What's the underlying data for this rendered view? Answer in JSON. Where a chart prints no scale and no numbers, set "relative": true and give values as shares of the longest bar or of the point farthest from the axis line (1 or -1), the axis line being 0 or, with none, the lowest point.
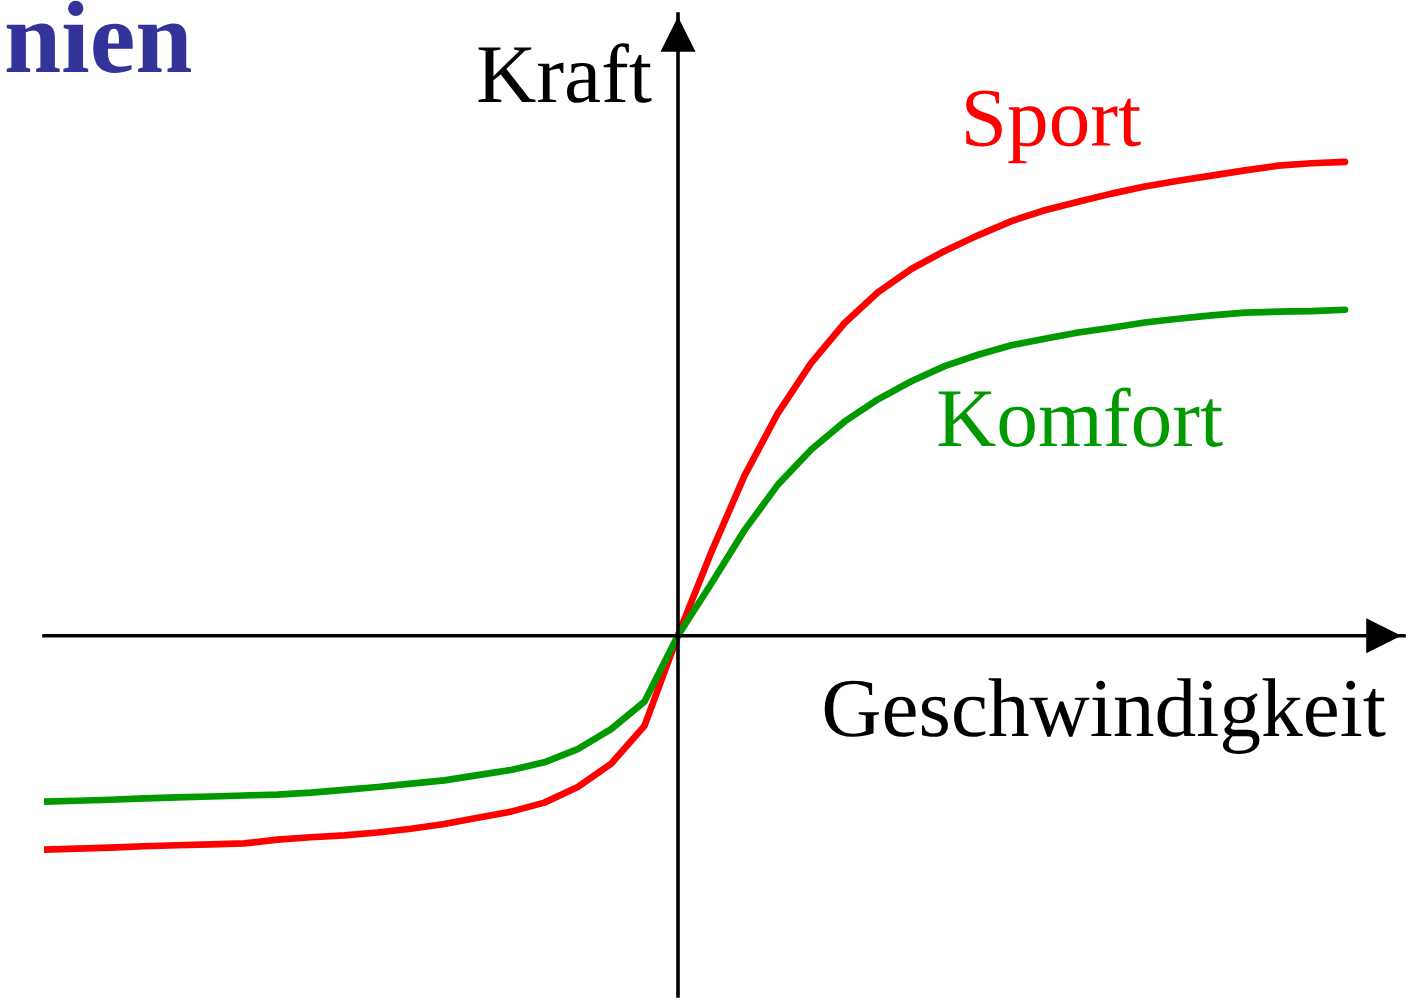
{
  "chart_data": {
    "type": "line",
    "title": "nien",
    "xlabel": "Geschwindigkeit",
    "ylabel": "Kraft",
    "relative": true,
    "categories": [
      null,
      null,
      null,
      null,
      null,
      null,
      null,
      null,
      null,
      null,
      null,
      null,
      null,
      null,
      null,
      null,
      null,
      null,
      null,
      null,
      null,
      null,
      null,
      null,
      null,
      null,
      null,
      null,
      null,
      null,
      null,
      null,
      null,
      null,
      null,
      null,
      null,
      null,
      null,
      null
    ],
    "series": [
      {
        "name": "Sport",
        "color": "#ff0000",
        "values": [
          -0.451,
          -0.449,
          -0.447,
          -0.444,
          -0.442,
          -0.44,
          -0.438,
          -0.43,
          -0.425,
          -0.421,
          -0.415,
          -0.407,
          -0.397,
          -0.384,
          -0.371,
          -0.352,
          -0.319,
          -0.27,
          -0.19,
          0,
          0.176,
          0.338,
          0.47,
          0.576,
          0.66,
          0.725,
          0.774,
          0.812,
          0.845,
          0.875,
          0.898,
          0.916,
          0.933,
          0.948,
          0.96,
          0.971,
          0.982,
          0.992,
          0.997,
          1
        ]
      },
      {
        "name": "Komfort",
        "color": "#009900",
        "values": [
          -0.35,
          -0.348,
          -0.346,
          -0.343,
          -0.341,
          -0.339,
          -0.337,
          -0.335,
          -0.331,
          -0.325,
          -0.319,
          -0.312,
          -0.305,
          -0.294,
          -0.283,
          -0.267,
          -0.239,
          -0.197,
          -0.139,
          0,
          0.11,
          0.223,
          0.319,
          0.393,
          0.452,
          0.499,
          0.537,
          0.569,
          0.593,
          0.613,
          0.627,
          0.64,
          0.65,
          0.661,
          0.669,
          0.676,
          0.682,
          0.684,
          0.685,
          0.688
        ]
      }
    ]
  }
}
